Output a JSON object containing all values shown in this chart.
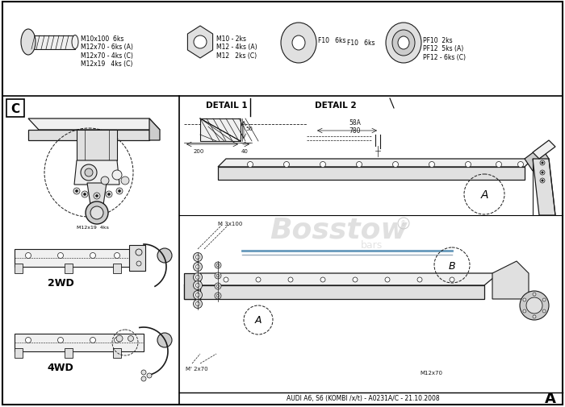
{
  "bg_color": "#ffffff",
  "border_color": "#000000",
  "dc": "#1a1a1a",
  "gray1": "#f0f0f0",
  "gray2": "#e0e0e0",
  "gray3": "#cccccc",
  "gray4": "#aaaaaa",
  "logo_gray": "#c8c8c8",
  "blue1": "#6699bb",
  "blue2": "#99aabb",
  "bottom_text": "AUDI A6, S6 (KOMBI /x/t) - A0231A/C - 21.10.2008",
  "bolt_text": "M10x100  6ks\nM12x70 - 6ks (A)\nM12x70 - 4ks (C)\nM12x19   4ks (C)",
  "nut_text": "M10 - 2ks\nM12 - 4ks (A)\nM12   2ks (C)",
  "washer_text": "F10   6ks",
  "pf_text": "PF10  2ks\nPF12  5ks (A)\nPF12 - 6ks (C)",
  "detail1_text": "DETAIL 1",
  "detail2_text": "DETAIL 2",
  "dim_200": "200",
  "dim_40": "40",
  "dim_50": "50",
  "dim_58A": "58A",
  "dim_780": "780",
  "label_A": "A",
  "label_B": "B",
  "label_C": "C",
  "text_2WD": "2WD",
  "text_4WD": "4WD",
  "bolt_m12x19": "M12x19  4ks",
  "bolt_m3x100": "M 3x100",
  "bolt_m12x70_bot": "M12x70",
  "bolt_m2x70": "M' 2x70"
}
